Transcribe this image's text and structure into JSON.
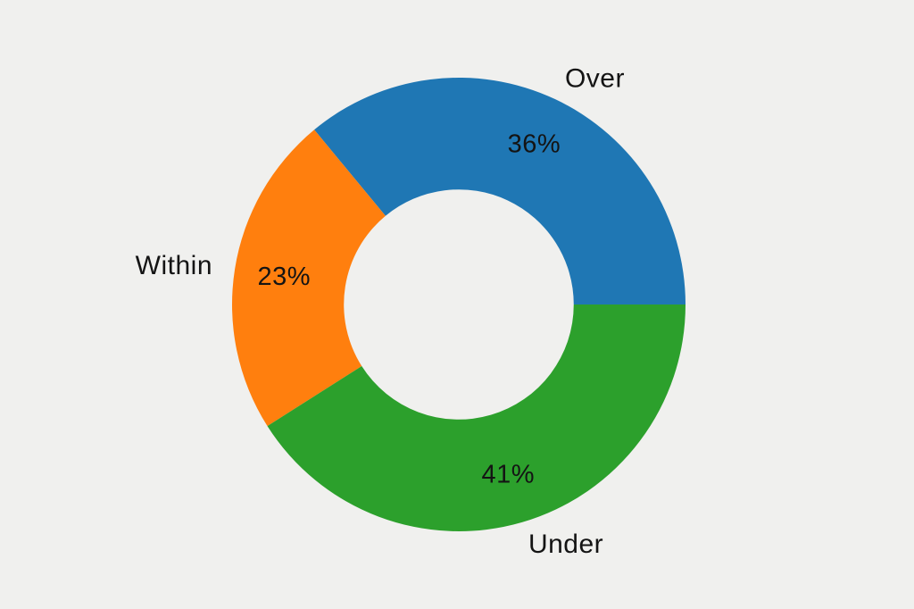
{
  "page": {
    "background": "#f0f0ee",
    "text_color": "#141414"
  },
  "chart_data": {
    "type": "pie",
    "subtype": "donut",
    "title": "",
    "categories": [
      "Over",
      "Within",
      "Under"
    ],
    "values": [
      36,
      23,
      41
    ],
    "value_labels": [
      "36%",
      "23%",
      "41%"
    ],
    "colors": [
      "#1f77b4",
      "#ff7f0e",
      "#2ca02c"
    ],
    "units": "percent",
    "start_angle_deg": 0,
    "direction": "counterclockwise",
    "donut_hole_ratio": 0.507,
    "legend": "none",
    "grid": "off"
  }
}
